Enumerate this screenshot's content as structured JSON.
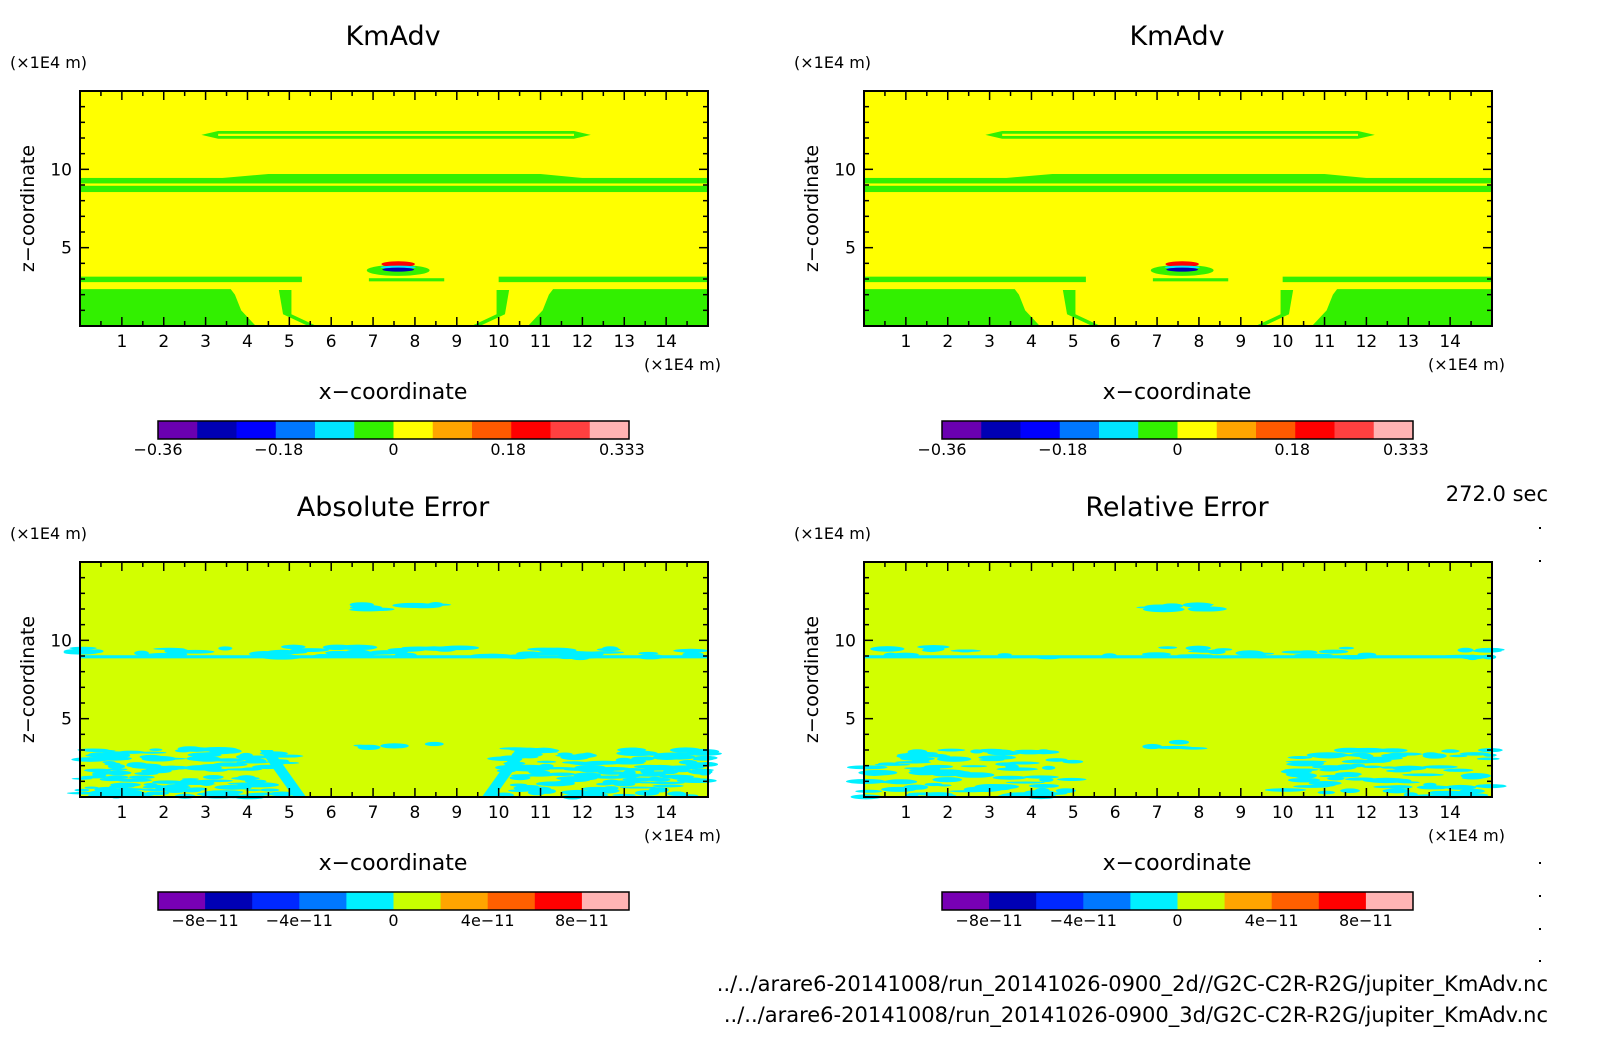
{
  "chart_data": [
    {
      "type": "heatmap",
      "title": "KmAdv",
      "xlabel": "x−coordinate",
      "ylabel": "z−coordinate",
      "x_unit": "(×1E4 m)",
      "y_unit": "(×1E4 m)",
      "xlim": [
        0,
        15
      ],
      "ylim": [
        0,
        15
      ],
      "x_ticks": [
        "1",
        "2",
        "3",
        "4",
        "5",
        "6",
        "7",
        "8",
        "9",
        "10",
        "11",
        "12",
        "13",
        "14"
      ],
      "y_ticks": [
        "5",
        "10"
      ],
      "colorbar": {
        "ticks": [
          "−0.36",
          "−0.18",
          "0",
          "0.18",
          "0.333"
        ],
        "colors": [
          "#6a00b0",
          "#0000b4",
          "#0000ff",
          "#0078ff",
          "#00e6ff",
          "#32f000",
          "#ffff00",
          "#ffa500",
          "#ff5a00",
          "#ff0000",
          "#ff4040",
          "#ffb4b4"
        ]
      },
      "background_color": "#ffff00",
      "feature_color": "#32f000"
    },
    {
      "type": "heatmap",
      "title": "KmAdv",
      "xlabel": "x−coordinate",
      "ylabel": "z−coordinate",
      "x_unit": "(×1E4 m)",
      "y_unit": "(×1E4 m)",
      "xlim": [
        0,
        15
      ],
      "ylim": [
        0,
        15
      ],
      "x_ticks": [
        "1",
        "2",
        "3",
        "4",
        "5",
        "6",
        "7",
        "8",
        "9",
        "10",
        "11",
        "12",
        "13",
        "14"
      ],
      "y_ticks": [
        "5",
        "10"
      ],
      "colorbar": {
        "ticks": [
          "−0.36",
          "−0.18",
          "0",
          "0.18",
          "0.333"
        ],
        "colors": [
          "#6a00b0",
          "#0000b4",
          "#0000ff",
          "#0078ff",
          "#00e6ff",
          "#32f000",
          "#ffff00",
          "#ffa500",
          "#ff5a00",
          "#ff0000",
          "#ff4040",
          "#ffb4b4"
        ]
      },
      "background_color": "#ffff00",
      "feature_color": "#32f000"
    },
    {
      "type": "heatmap",
      "title": "Absolute Error",
      "xlabel": "x−coordinate",
      "ylabel": "z−coordinate",
      "x_unit": "(×1E4 m)",
      "y_unit": "(×1E4 m)",
      "xlim": [
        0,
        15
      ],
      "ylim": [
        0,
        15
      ],
      "x_ticks": [
        "1",
        "2",
        "3",
        "4",
        "5",
        "6",
        "7",
        "8",
        "9",
        "10",
        "11",
        "12",
        "13",
        "14"
      ],
      "y_ticks": [
        "5",
        "10"
      ],
      "colorbar": {
        "ticks": [
          "−8e−11",
          "−4e−11",
          "0",
          "4e−11",
          "8e−11"
        ],
        "colors": [
          "#7800b4",
          "#0000b4",
          "#0028ff",
          "#0078ff",
          "#00f0ff",
          "#c8ff00",
          "#ffa500",
          "#ff6000",
          "#ff0000",
          "#ffb4b4"
        ]
      },
      "background_color": "#d2ff00",
      "feature_color": "#00f0ff"
    },
    {
      "type": "heatmap",
      "title": "Relative Error",
      "xlabel": "x−coordinate",
      "ylabel": "z−coordinate",
      "x_unit": "(×1E4 m)",
      "y_unit": "(×1E4 m)",
      "xlim": [
        0,
        15
      ],
      "ylim": [
        0,
        15
      ],
      "x_ticks": [
        "1",
        "2",
        "3",
        "4",
        "5",
        "6",
        "7",
        "8",
        "9",
        "10",
        "11",
        "12",
        "13",
        "14"
      ],
      "y_ticks": [
        "5",
        "10"
      ],
      "colorbar": {
        "ticks": [
          "−8e−11",
          "−4e−11",
          "0",
          "4e−11",
          "8e−11"
        ],
        "colors": [
          "#7800b4",
          "#0000b4",
          "#0028ff",
          "#0078ff",
          "#00f0ff",
          "#c8ff00",
          "#ffa500",
          "#ff6000",
          "#ff0000",
          "#ffb4b4"
        ]
      },
      "background_color": "#d2ff00",
      "feature_color": "#00f0ff"
    }
  ],
  "time_label": "272.0 sec",
  "file_paths": [
    "../../arare6-20141008/run_20141026-0900_2d//G2C-C2R-R2G/jupiter_KmAdv.nc",
    "../../arare6-20141008/run_20141026-0900_3d/G2C-C2R-R2G/jupiter_KmAdv.nc"
  ]
}
